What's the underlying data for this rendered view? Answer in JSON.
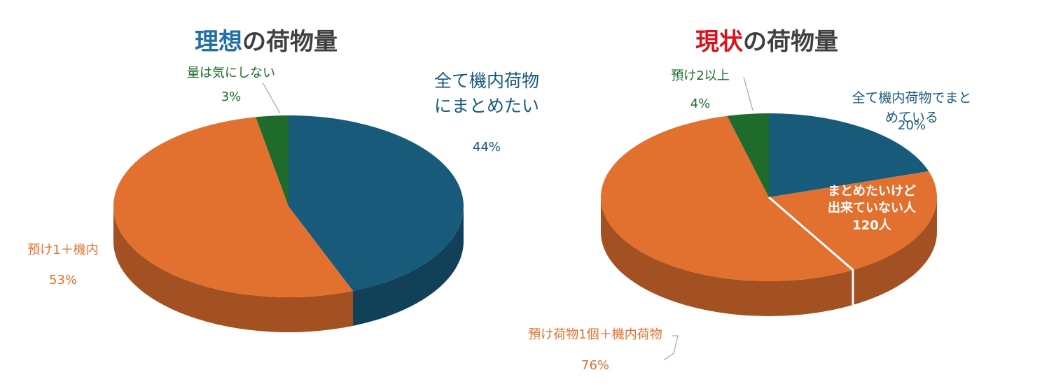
{
  "chart_data": [
    {
      "type": "pie3d",
      "title": {
        "emphasis": "理想",
        "emphasis_color": "#1f6fa8",
        "text": "の荷物量"
      },
      "categories": [
        "全て機内荷物\nにまとめたい",
        "預け1＋機内",
        "量は気にしない"
      ],
      "values": [
        44,
        53,
        3
      ],
      "value_labels": [
        "44%",
        "53%",
        "3%"
      ],
      "colors": [
        "#175a7a",
        "#e2702f",
        "#1e6b2c"
      ]
    },
    {
      "type": "pie3d",
      "title": {
        "emphasis": "現状",
        "emphasis_color": "#d8141b",
        "text": "の荷物量"
      },
      "categories": [
        "全て機内荷物でまとめている",
        "預け荷物1個＋機内荷物",
        "預け2以上"
      ],
      "values": [
        20,
        76,
        4
      ],
      "value_labels": [
        "20%",
        "76%",
        "4%"
      ],
      "colors": [
        "#175a7a",
        "#e2702f",
        "#1e6b2c"
      ],
      "annotation": "まとめたいけど\n出来ていない人\n120人"
    }
  ]
}
